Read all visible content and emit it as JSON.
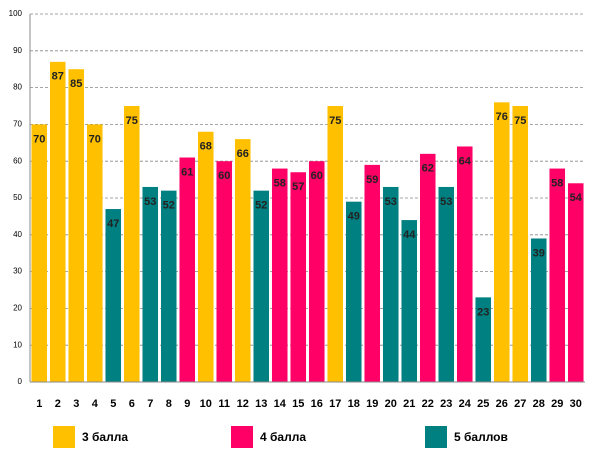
{
  "chart_data": {
    "type": "bar",
    "categories": [
      "1",
      "2",
      "3",
      "4",
      "5",
      "6",
      "7",
      "8",
      "9",
      "10",
      "11",
      "12",
      "13",
      "14",
      "15",
      "16",
      "17",
      "18",
      "19",
      "20",
      "21",
      "22",
      "23",
      "24",
      "25",
      "26",
      "27",
      "28",
      "29",
      "30"
    ],
    "series": [
      {
        "name": "3 балла",
        "color": "#ffc000",
        "values": [
          70,
          87,
          85,
          70,
          null,
          75,
          null,
          null,
          null,
          68,
          null,
          66,
          null,
          null,
          null,
          null,
          75,
          null,
          null,
          null,
          null,
          null,
          null,
          null,
          null,
          76,
          75,
          null,
          null,
          null
        ]
      },
      {
        "name": "4 балла",
        "color": "#ff0066",
        "values": [
          null,
          null,
          null,
          null,
          null,
          null,
          null,
          null,
          61,
          null,
          60,
          null,
          null,
          58,
          57,
          60,
          null,
          null,
          59,
          null,
          null,
          62,
          null,
          64,
          null,
          null,
          null,
          null,
          58,
          54
        ]
      },
      {
        "name": "5 баллов",
        "color": "#008080",
        "values": [
          null,
          null,
          null,
          null,
          47,
          null,
          53,
          52,
          null,
          null,
          null,
          null,
          52,
          null,
          null,
          null,
          null,
          49,
          null,
          53,
          44,
          null,
          53,
          null,
          23,
          null,
          null,
          39,
          null,
          null
        ]
      }
    ],
    "ylim": [
      0,
      100
    ],
    "yticks": [
      0,
      10,
      20,
      30,
      40,
      50,
      60,
      70,
      80,
      90,
      100
    ],
    "grid": true,
    "legend": "bottom"
  }
}
